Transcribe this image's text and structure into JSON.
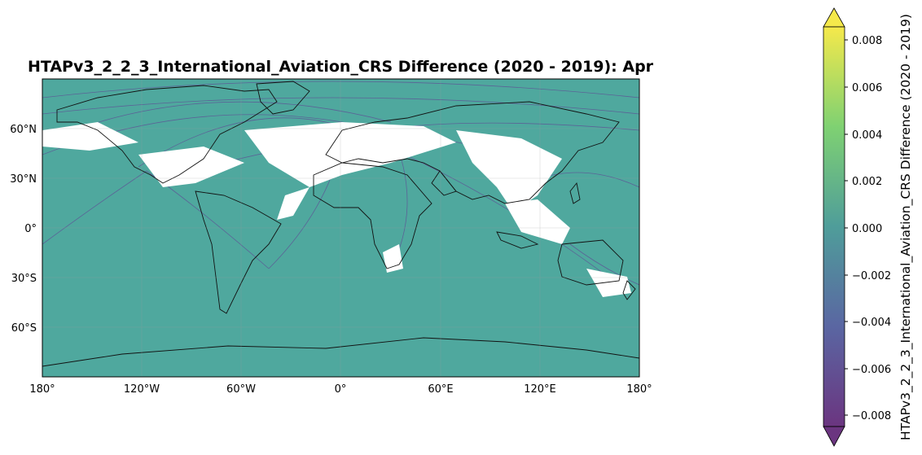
{
  "title": "HTAPv3_2_2_3_International_Aviation_CRS Difference (2020 - 2019): Apr",
  "colors": {
    "ocean": "#4fa89e",
    "no_data": "#ffffff",
    "coast": "#111111",
    "route_negative": "#5f4d95",
    "colormap": [
      "#440154",
      "#3b528b",
      "#21918c",
      "#5ec962",
      "#fde725"
    ]
  },
  "map": {
    "projection": "PlateCarree",
    "lon_range": [
      -180,
      180
    ],
    "lat_range": [
      -90,
      90
    ],
    "lon_ticks": [
      "180°",
      "120°W",
      "60°W",
      "0°",
      "60°E",
      "120°E",
      "180°"
    ],
    "lat_ticks": [
      "60°N",
      "30°N",
      "0°",
      "30°S",
      "60°S"
    ]
  },
  "colorbar": {
    "label": "HTAPv3_2_2_3_International_Aviation_CRS Difference (2020 - 2019)",
    "colormap": "viridis",
    "extend": "both",
    "range": [
      -0.009,
      0.009
    ],
    "ticks": [
      "0.008",
      "0.006",
      "0.004",
      "0.002",
      "0.000",
      "−0.002",
      "−0.004",
      "−0.006",
      "−0.008"
    ]
  }
}
